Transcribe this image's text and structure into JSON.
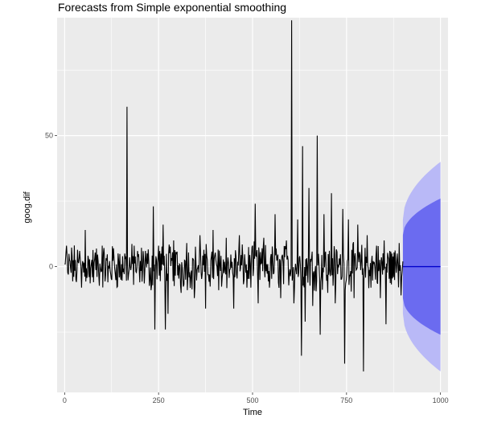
{
  "chart_data": {
    "type": "line",
    "title": "Forecasts from Simple exponential smoothing",
    "xlabel": "Time",
    "ylabel": "goog.dif",
    "xlim": [
      -20,
      1020
    ],
    "ylim": [
      -48,
      95
    ],
    "x_ticks": [
      0,
      250,
      500,
      750,
      1000
    ],
    "y_ticks": [
      0,
      50
    ],
    "grid": true,
    "series": [
      {
        "type": "line",
        "description_points": [
          [
            0,
            1
          ],
          [
            5,
            8
          ],
          [
            10,
            -3
          ],
          [
            20,
            4
          ],
          [
            30,
            -5
          ],
          [
            40,
            6
          ],
          [
            45,
            -8
          ],
          [
            55,
            14
          ],
          [
            65,
            -4
          ],
          [
            80,
            3
          ],
          [
            100,
            8
          ],
          [
            115,
            -6
          ],
          [
            130,
            7
          ],
          [
            150,
            -5
          ],
          [
            160,
            5
          ],
          [
            166,
            61
          ],
          [
            170,
            -3
          ],
          [
            185,
            8
          ],
          [
            200,
            -6
          ],
          [
            215,
            6
          ],
          [
            230,
            -9
          ],
          [
            236,
            23
          ],
          [
            240,
            -24
          ],
          [
            250,
            8
          ],
          [
            262,
            16
          ],
          [
            268,
            -24
          ],
          [
            275,
            -18
          ],
          [
            290,
            10
          ],
          [
            310,
            -10
          ],
          [
            325,
            9
          ],
          [
            345,
            -12
          ],
          [
            360,
            12
          ],
          [
            375,
            -16
          ],
          [
            395,
            14
          ],
          [
            410,
            -9
          ],
          [
            430,
            11
          ],
          [
            450,
            -16
          ],
          [
            465,
            12
          ],
          [
            485,
            -8
          ],
          [
            500,
            8
          ],
          [
            507,
            24
          ],
          [
            515,
            -14
          ],
          [
            530,
            11
          ],
          [
            545,
            -8
          ],
          [
            560,
            20
          ],
          [
            575,
            -12
          ],
          [
            590,
            10
          ],
          [
            604,
            94
          ],
          [
            610,
            -14
          ],
          [
            620,
            18
          ],
          [
            630,
            -34
          ],
          [
            633,
            46
          ],
          [
            640,
            -21
          ],
          [
            650,
            30
          ],
          [
            660,
            -15
          ],
          [
            672,
            50
          ],
          [
            680,
            -26
          ],
          [
            690,
            20
          ],
          [
            700,
            -10
          ],
          [
            710,
            28
          ],
          [
            720,
            -14
          ],
          [
            740,
            22
          ],
          [
            745,
            -37
          ],
          [
            755,
            18
          ],
          [
            770,
            -12
          ],
          [
            780,
            16
          ],
          [
            795,
            -40
          ],
          [
            805,
            12
          ],
          [
            815,
            -8
          ],
          [
            830,
            8
          ],
          [
            840,
            -12
          ],
          [
            850,
            10
          ],
          [
            855,
            -22
          ],
          [
            865,
            6
          ],
          [
            875,
            -4
          ],
          [
            885,
            5
          ],
          [
            890,
            9
          ],
          [
            895,
            -11
          ],
          [
            900,
            2
          ]
        ]
      }
    ],
    "forecast": {
      "x": [
        900,
        1000
      ],
      "point": 0,
      "pi80_half_width": [
        12,
        26
      ],
      "pi95_half_width": [
        18,
        40
      ]
    },
    "colors": {
      "panel": "#ebebeb",
      "grid": "#ffffff",
      "series": "#000000",
      "forecast_line": "#0000cc",
      "pi80": "#6b6bf0",
      "pi95": "#b9b9f7"
    }
  }
}
